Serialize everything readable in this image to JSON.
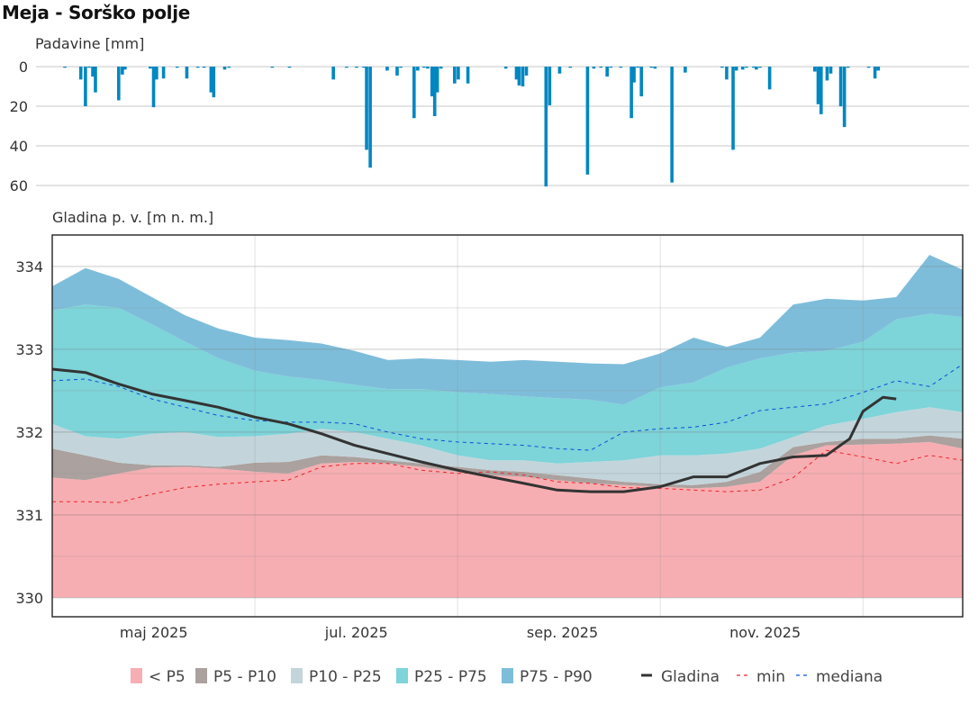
{
  "title": "Meja - Sorško polje",
  "chart_data": [
    {
      "type": "bar",
      "title": "Padavine [mm]",
      "ylabel": "Padavine [mm]",
      "yaxis_reversed": true,
      "ylim": [
        0,
        65
      ],
      "yticks": [
        0,
        20,
        40,
        60
      ],
      "grid": true,
      "color": "#0087C1",
      "x_unit": "days since 2025-04-01",
      "bars": [
        {
          "day": 3.8,
          "value": 0.5
        },
        {
          "day": 8.6,
          "value": 6.5
        },
        {
          "day": 10.0,
          "value": 20
        },
        {
          "day": 11.1,
          "value": 0.5
        },
        {
          "day": 12.2,
          "value": 5
        },
        {
          "day": 13.0,
          "value": 13
        },
        {
          "day": 20.0,
          "value": 17
        },
        {
          "day": 21.1,
          "value": 4
        },
        {
          "day": 21.9,
          "value": 1.5
        },
        {
          "day": 29.5,
          "value": 1
        },
        {
          "day": 30.5,
          "value": 20.5
        },
        {
          "day": 31.4,
          "value": 6.5
        },
        {
          "day": 33.5,
          "value": 6
        },
        {
          "day": 37.6,
          "value": 0.5
        },
        {
          "day": 40.5,
          "value": 6
        },
        {
          "day": 43.8,
          "value": 0.5
        },
        {
          "day": 45.7,
          "value": 0.5
        },
        {
          "day": 47.8,
          "value": 13
        },
        {
          "day": 48.6,
          "value": 15.5
        },
        {
          "day": 51.9,
          "value": 1.5
        },
        {
          "day": 53.2,
          "value": 0.5
        },
        {
          "day": 66.2,
          "value": 0.5
        },
        {
          "day": 71.4,
          "value": 0.5
        },
        {
          "day": 84.6,
          "value": 6.5
        },
        {
          "day": 88.6,
          "value": 0.3
        },
        {
          "day": 91.6,
          "value": 0.3
        },
        {
          "day": 93.8,
          "value": 0.3
        },
        {
          "day": 94.6,
          "value": 42
        },
        {
          "day": 95.7,
          "value": 51
        },
        {
          "day": 100.8,
          "value": 2
        },
        {
          "day": 103.8,
          "value": 4.5
        },
        {
          "day": 104.9,
          "value": 0.5
        },
        {
          "day": 108.9,
          "value": 26
        },
        {
          "day": 110.0,
          "value": 2
        },
        {
          "day": 111.9,
          "value": 0.5
        },
        {
          "day": 113.0,
          "value": 1
        },
        {
          "day": 114.3,
          "value": 15
        },
        {
          "day": 115.1,
          "value": 25
        },
        {
          "day": 115.9,
          "value": 13
        },
        {
          "day": 117.0,
          "value": 1
        },
        {
          "day": 121.1,
          "value": 8.5
        },
        {
          "day": 122.2,
          "value": 6.5
        },
        {
          "day": 125.1,
          "value": 8.5
        },
        {
          "day": 136.5,
          "value": 1
        },
        {
          "day": 139.7,
          "value": 6.5
        },
        {
          "day": 140.5,
          "value": 9.5
        },
        {
          "day": 141.6,
          "value": 10
        },
        {
          "day": 142.7,
          "value": 4.5
        },
        {
          "day": 148.6,
          "value": 60.5
        },
        {
          "day": 149.7,
          "value": 19.5
        },
        {
          "day": 152.7,
          "value": 3.5
        },
        {
          "day": 155.9,
          "value": 0.5
        },
        {
          "day": 161.1,
          "value": 54.5
        },
        {
          "day": 163.0,
          "value": 1
        },
        {
          "day": 165.1,
          "value": 0.3
        },
        {
          "day": 167.0,
          "value": 5
        },
        {
          "day": 168.1,
          "value": 0.3
        },
        {
          "day": 171.1,
          "value": 0.3
        },
        {
          "day": 174.3,
          "value": 26
        },
        {
          "day": 175.1,
          "value": 8
        },
        {
          "day": 176.2,
          "value": 0.3
        },
        {
          "day": 177.3,
          "value": 15
        },
        {
          "day": 180.3,
          "value": 0.3
        },
        {
          "day": 181.4,
          "value": 1
        },
        {
          "day": 186.5,
          "value": 58.5
        },
        {
          "day": 190.5,
          "value": 3
        },
        {
          "day": 201.6,
          "value": 0.5
        },
        {
          "day": 202.97,
          "value": 6.5
        },
        {
          "day": 204.9,
          "value": 42
        },
        {
          "day": 205.9,
          "value": 2
        },
        {
          "day": 207.8,
          "value": 1.5
        },
        {
          "day": 208.9,
          "value": 0.3
        },
        {
          "day": 211.1,
          "value": 0.5
        },
        {
          "day": 211.9,
          "value": 1.5
        },
        {
          "day": 213.0,
          "value": 0.3
        },
        {
          "day": 215.9,
          "value": 11.5
        },
        {
          "day": 229.5,
          "value": 2.5
        },
        {
          "day": 230.5,
          "value": 19
        },
        {
          "day": 231.4,
          "value": 24
        },
        {
          "day": 233.2,
          "value": 7
        },
        {
          "day": 234.3,
          "value": 3.5
        },
        {
          "day": 237.3,
          "value": 20
        },
        {
          "day": 238.4,
          "value": 30.5
        },
        {
          "day": 239.5,
          "value": 0.3
        },
        {
          "day": 245.7,
          "value": 0.5
        },
        {
          "day": 247.6,
          "value": 6
        },
        {
          "day": 248.6,
          "value": 2
        }
      ]
    },
    {
      "type": "area",
      "title": "Gladina p. v. [m n. m.]",
      "ylabel": "Gladina p. v. [m n. m.]",
      "ylim": [
        329.77,
        334.38
      ],
      "yticks": [
        330,
        331,
        332,
        333,
        334
      ],
      "grid": true,
      "x_unit": "days since 2025-04-01",
      "xlim": [
        0,
        274
      ],
      "xticks": [
        {
          "day": 30,
          "label": "maj 2025"
        },
        {
          "day": 91,
          "label": "jul. 2025"
        },
        {
          "day": 153,
          "label": "sep. 2025"
        },
        {
          "day": 214,
          "label": "nov. 2025"
        }
      ],
      "xgrid_days": [
        61,
        122,
        183,
        244
      ],
      "x": [
        0,
        10,
        20,
        30,
        40,
        50,
        61,
        71,
        81,
        91,
        101,
        111,
        122,
        132,
        142,
        152,
        162,
        172,
        183,
        193,
        203,
        213,
        223,
        233,
        244,
        254,
        264,
        274
      ],
      "baseline": 330,
      "bands": [
        {
          "name": "< P5",
          "color": "#F7AEB2",
          "upper": [
            331.45,
            331.42,
            331.5,
            331.57,
            331.58,
            331.56,
            331.52,
            331.5,
            331.62,
            331.64,
            331.62,
            331.58,
            331.52,
            331.48,
            331.46,
            331.42,
            331.38,
            331.36,
            331.34,
            331.32,
            331.34,
            331.4,
            331.72,
            331.84,
            331.85,
            331.86,
            331.88,
            331.8
          ]
        },
        {
          "name": "P5 - P10",
          "color": "#ABA19F",
          "upper": [
            331.8,
            331.72,
            331.63,
            331.6,
            331.6,
            331.58,
            331.63,
            331.64,
            331.72,
            331.7,
            331.66,
            331.62,
            331.58,
            331.54,
            331.52,
            331.48,
            331.44,
            331.4,
            331.37,
            331.36,
            331.4,
            331.52,
            331.82,
            331.88,
            331.92,
            331.92,
            331.96,
            331.92
          ]
        },
        {
          "name": "P10 - P25",
          "color": "#C3D5DB",
          "upper": [
            332.1,
            331.95,
            331.92,
            331.98,
            332.0,
            331.94,
            331.95,
            331.98,
            332.04,
            332.0,
            331.92,
            331.84,
            331.72,
            331.66,
            331.66,
            331.62,
            331.64,
            331.66,
            331.72,
            331.72,
            331.74,
            331.8,
            331.94,
            332.08,
            332.16,
            332.24,
            332.3,
            332.24
          ]
        },
        {
          "name": "P25 - P75",
          "color": "#7DD4D9",
          "upper": [
            333.47,
            333.54,
            333.5,
            333.3,
            333.09,
            332.89,
            332.74,
            332.67,
            332.63,
            332.57,
            332.52,
            332.52,
            332.48,
            332.46,
            332.43,
            332.41,
            332.39,
            332.33,
            332.54,
            332.6,
            332.78,
            332.89,
            332.96,
            332.98,
            333.09,
            333.36,
            333.43,
            333.39
          ]
        },
        {
          "name": "P75 - P90",
          "color": "#7EBDDA",
          "upper": [
            333.76,
            333.98,
            333.85,
            333.63,
            333.41,
            333.25,
            333.14,
            333.11,
            333.07,
            332.98,
            332.87,
            332.89,
            332.87,
            332.85,
            332.87,
            332.85,
            332.83,
            332.82,
            332.95,
            333.14,
            333.03,
            333.14,
            333.54,
            333.61,
            333.59,
            333.63,
            334.14,
            333.96
          ]
        }
      ],
      "series": [
        {
          "name": "Gladina",
          "color": "#333333",
          "style": "solid",
          "x": [
            0,
            10,
            20,
            30,
            40,
            50,
            61,
            71,
            81,
            91,
            101,
            111,
            122,
            132,
            142,
            152,
            162,
            172,
            183,
            193,
            203,
            213,
            223,
            233,
            240,
            244,
            250,
            254
          ],
          "values": [
            332.76,
            332.72,
            332.58,
            332.46,
            332.38,
            332.3,
            332.18,
            332.1,
            331.98,
            331.84,
            331.74,
            331.64,
            331.54,
            331.46,
            331.38,
            331.3,
            331.28,
            331.28,
            331.34,
            331.46,
            331.46,
            331.62,
            331.7,
            331.72,
            331.92,
            332.25,
            332.42,
            332.4
          ]
        },
        {
          "name": "min",
          "color": "#E8262A",
          "style": "dashed",
          "values": [
            331.16,
            331.16,
            331.15,
            331.25,
            331.33,
            331.37,
            331.4,
            331.42,
            331.58,
            331.62,
            331.62,
            331.54,
            331.5,
            331.52,
            331.48,
            331.4,
            331.38,
            331.33,
            331.32,
            331.3,
            331.28,
            331.3,
            331.45,
            331.78,
            331.7,
            331.62,
            331.72,
            331.66
          ]
        },
        {
          "name": "mediana",
          "color": "#0A4FD6",
          "style": "dashed",
          "values": [
            332.62,
            332.64,
            332.55,
            332.4,
            332.3,
            332.2,
            332.14,
            332.12,
            332.12,
            332.1,
            332.0,
            331.92,
            331.88,
            331.86,
            331.84,
            331.8,
            331.78,
            332.0,
            332.04,
            332.06,
            332.12,
            332.26,
            332.3,
            332.34,
            332.48,
            332.62,
            332.55,
            332.82
          ]
        }
      ]
    }
  ],
  "legend": {
    "placement": "bottom",
    "items": [
      {
        "label": "< P5",
        "kind": "box",
        "color": "#F7AEB2"
      },
      {
        "label": "P5 - P10",
        "kind": "box",
        "color": "#ABA19F"
      },
      {
        "label": "P10 - P25",
        "kind": "box",
        "color": "#C3D5DB"
      },
      {
        "label": "P25 - P75",
        "kind": "box",
        "color": "#7DD4D9"
      },
      {
        "label": "P75 - P90",
        "kind": "box",
        "color": "#7EBDDA"
      },
      {
        "label": "Gladina",
        "kind": "solid",
        "color": "#333333"
      },
      {
        "label": "min",
        "kind": "dashed",
        "color": "#E8262A"
      },
      {
        "label": "mediana",
        "kind": "dashed",
        "color": "#0A4FD6"
      }
    ]
  }
}
